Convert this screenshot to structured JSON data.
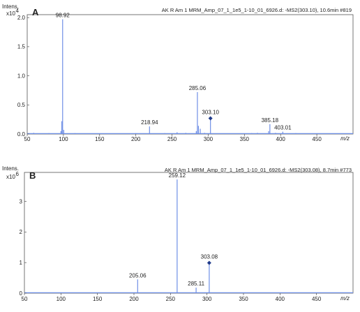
{
  "chart_data": [
    {
      "type": "bar",
      "panel_label": "A",
      "header": "AK R Am 1 MRM_Amp_07_1_1e5_1-10_01_6926.d: -MS2(303.10), 10.6min #819",
      "ylabel": "Intens.",
      "y_multiplier": {
        "base": "x10",
        "exponent": "4"
      },
      "xlabel": "m/z",
      "xlim": [
        50,
        500
      ],
      "ylim": [
        0,
        2.05
      ],
      "xticks": [
        50,
        100,
        150,
        200,
        250,
        300,
        350,
        400,
        450
      ],
      "yticks": [
        0.0,
        0.5,
        1.0,
        1.5,
        2.0
      ],
      "ytick_labels": [
        "0.0",
        "0.5",
        "1.0",
        "1.5",
        "2.0"
      ],
      "color": "#6f8fe6",
      "marker_color": "#1f3a8a",
      "peaks": [
        {
          "x": 59,
          "y": 0.02
        },
        {
          "x": 70,
          "y": 0.01
        },
        {
          "x": 80,
          "y": 0.015
        },
        {
          "x": 96.5,
          "y": 0.05
        },
        {
          "x": 97.8,
          "y": 0.22
        },
        {
          "x": 98.92,
          "y": 1.97,
          "label": "98.92"
        },
        {
          "x": 100.5,
          "y": 0.07
        },
        {
          "x": 116,
          "y": 0.015
        },
        {
          "x": 140,
          "y": 0.01
        },
        {
          "x": 168,
          "y": 0.01
        },
        {
          "x": 200,
          "y": 0.015
        },
        {
          "x": 218.94,
          "y": 0.13,
          "label": "218.94"
        },
        {
          "x": 240,
          "y": 0.015
        },
        {
          "x": 257,
          "y": 0.03
        },
        {
          "x": 269,
          "y": 0.02
        },
        {
          "x": 283.5,
          "y": 0.05
        },
        {
          "x": 285.06,
          "y": 0.72,
          "label": "285.06"
        },
        {
          "x": 286.5,
          "y": 0.14
        },
        {
          "x": 289,
          "y": 0.09
        },
        {
          "x": 295,
          "y": 0.02
        },
        {
          "x": 303.1,
          "y": 0.27,
          "label": "303.10",
          "marker": true
        },
        {
          "x": 320,
          "y": 0.01
        },
        {
          "x": 340,
          "y": 0.01
        },
        {
          "x": 360,
          "y": 0.015
        },
        {
          "x": 368,
          "y": 0.02
        },
        {
          "x": 383.5,
          "y": 0.05
        },
        {
          "x": 385.18,
          "y": 0.17,
          "label": "385.18"
        },
        {
          "x": 393,
          "y": 0.02
        },
        {
          "x": 403.01,
          "y": 0.04,
          "label": "403.01"
        },
        {
          "x": 421,
          "y": 0.015
        },
        {
          "x": 440,
          "y": 0.01
        },
        {
          "x": 480,
          "y": 0.01
        }
      ]
    },
    {
      "type": "bar",
      "panel_label": "B",
      "header": "AK R Am 1 MRM_Amp_07_1_1e5_1-10_01_6926.d: -MS2(303.08), 8.7min #773",
      "ylabel": "Intens.",
      "y_multiplier": {
        "base": "x10",
        "exponent": "6"
      },
      "xlabel": "m/z",
      "xlim": [
        50,
        500
      ],
      "ylim": [
        0,
        3.95
      ],
      "xticks": [
        50,
        100,
        150,
        200,
        250,
        300,
        350,
        400,
        450
      ],
      "yticks": [
        0,
        1,
        2,
        3
      ],
      "ytick_labels": [
        "0",
        "1",
        "2",
        "3"
      ],
      "color": "#6f8fe6",
      "marker_color": "#1f3a8a",
      "peaks": [
        {
          "x": 205.06,
          "y": 0.45,
          "label": "205.06"
        },
        {
          "x": 259.12,
          "y": 3.72,
          "label": "259.12"
        },
        {
          "x": 285.11,
          "y": 0.18,
          "label": "285.11"
        },
        {
          "x": 303.08,
          "y": 0.99,
          "label": "303.08",
          "marker": true
        }
      ]
    }
  ]
}
